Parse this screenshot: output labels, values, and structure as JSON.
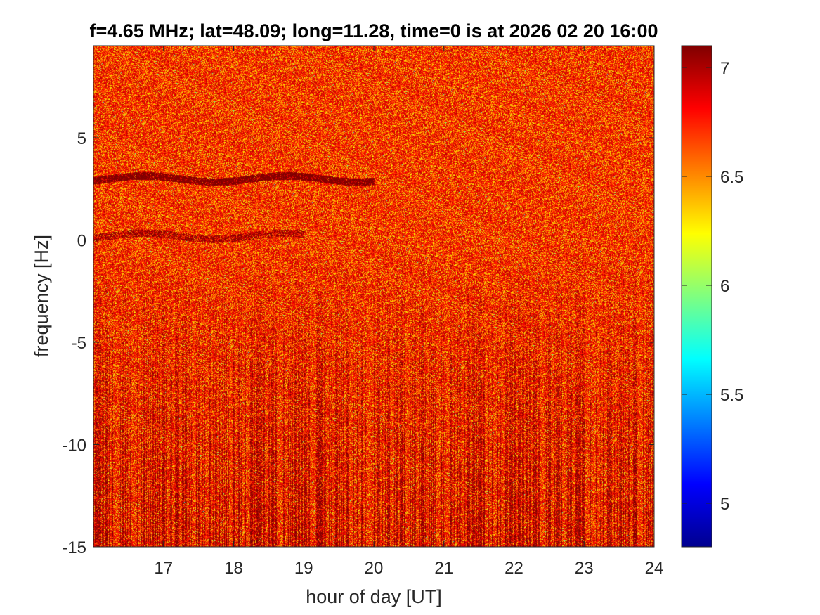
{
  "chart_data": {
    "type": "heatmap",
    "title": "f=4.65 MHz;  lat=48.09; long=11.28, time=0 is at 2026 02 20 16:00",
    "xlabel": "hour of day [UT]",
    "ylabel": "frequency [Hz]",
    "xlim": [
      16.0,
      24.0
    ],
    "ylim": [
      -15.0,
      9.5
    ],
    "x_ticks": [
      17,
      18,
      19,
      20,
      21,
      22,
      23,
      24
    ],
    "y_ticks": [
      -15,
      -10,
      -5,
      0,
      5
    ],
    "colorbar": {
      "range": [
        4.8,
        7.1
      ],
      "ticks": [
        5,
        5.5,
        6,
        6.5,
        7
      ],
      "colormap": "jet"
    },
    "features": [
      {
        "description": "dark trace",
        "x_range": [
          16.0,
          20.0
        ],
        "y": 3.0
      },
      {
        "description": "faint trace",
        "x_range": [
          16.0,
          19.0
        ],
        "y": 0.2
      }
    ]
  }
}
